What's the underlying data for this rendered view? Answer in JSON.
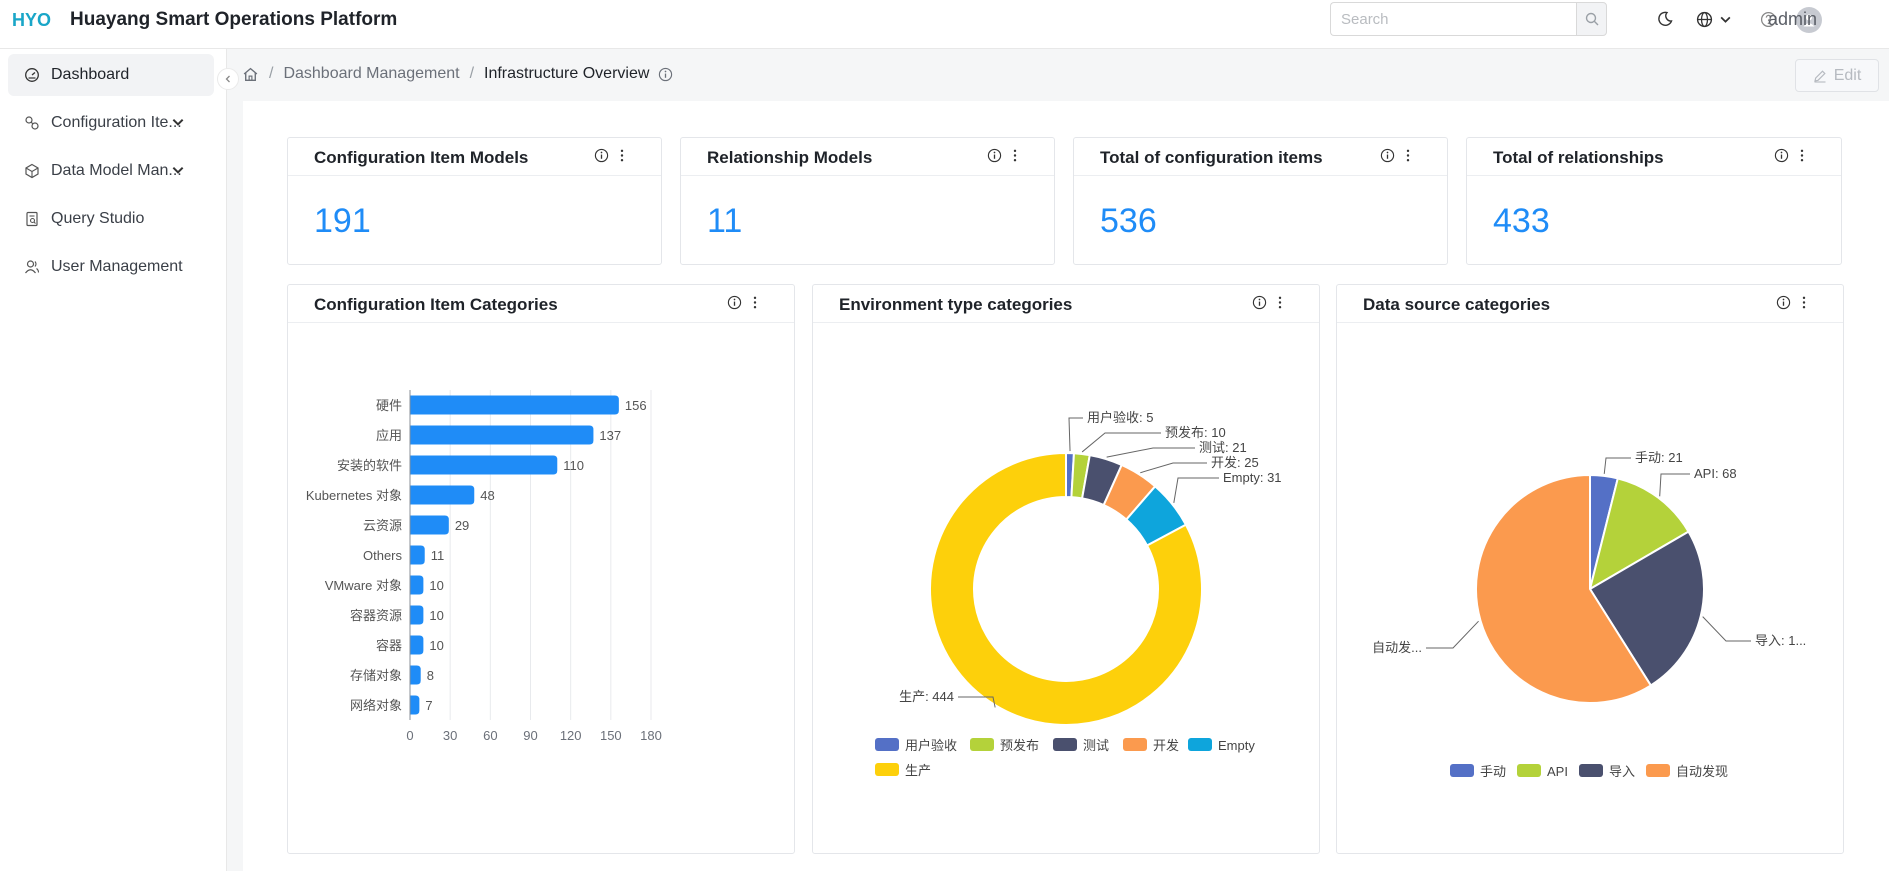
{
  "header": {
    "logo_text": "HYO",
    "app_title": "Huayang Smart Operations Platform",
    "search_placeholder": "Search",
    "user_name": "admin"
  },
  "sidebar": {
    "items": [
      {
        "label": "Dashboard",
        "icon": "dashboard-icon",
        "active": true
      },
      {
        "label": "Configuration Ite...",
        "icon": "configuration-icon"
      },
      {
        "label": "Data Model Man...",
        "icon": "data-model-icon"
      },
      {
        "label": "Query Studio",
        "icon": "query-icon"
      },
      {
        "label": "User Management",
        "icon": "user-icon"
      }
    ]
  },
  "breadcrumb": {
    "items": [
      "Dashboard Management",
      "Infrastructure Overview"
    ]
  },
  "toolbar": {
    "edit_label": "Edit"
  },
  "kpis": [
    {
      "title": "Configuration Item Models",
      "value": "191"
    },
    {
      "title": "Relationship Models",
      "value": "11"
    },
    {
      "title": "Total of configuration items",
      "value": "536"
    },
    {
      "title": "Total of relationships",
      "value": "433"
    }
  ],
  "chart_titles": [
    "Configuration Item Categories",
    "Environment type categories",
    "Data source categories"
  ],
  "chart_data": [
    {
      "type": "bar",
      "orientation": "horizontal",
      "title": "Configuration Item Categories",
      "categories": [
        "硬件",
        "应用",
        "安装的软件",
        "Kubernetes 对象",
        "云资源",
        "Others",
        "VMware 对象",
        "容器资源",
        "容器",
        "存储对象",
        "网络对象"
      ],
      "values": [
        156,
        137,
        110,
        48,
        29,
        11,
        10,
        10,
        10,
        8,
        7
      ],
      "xlim": [
        0,
        180
      ],
      "xticks": [
        "0",
        "30",
        "60",
        "90",
        "120",
        "150",
        "180"
      ],
      "color": "#1f8cf7",
      "grid": "vertical"
    },
    {
      "type": "pie",
      "donut": true,
      "title": "Environment type categories",
      "slices": [
        {
          "name": "用户验收",
          "value": 5,
          "label": "用户验收: 5",
          "color": "#5470c6"
        },
        {
          "name": "预发布",
          "value": 10,
          "label": "预发布: 10",
          "color": "#b4d23a"
        },
        {
          "name": "测试",
          "value": 21,
          "label": "测试: 21",
          "color": "#4a506e"
        },
        {
          "name": "开发",
          "value": 25,
          "label": "开发: 25",
          "color": "#fb9a4e"
        },
        {
          "name": "Empty",
          "value": 31,
          "label": "Empty: 31",
          "color": "#0ea5dc"
        },
        {
          "name": "生产",
          "value": 444,
          "label": "生产: 444",
          "color": "#fdd00b"
        }
      ],
      "legend": "bottom"
    },
    {
      "type": "pie",
      "donut": false,
      "title": "Data source categories",
      "slices": [
        {
          "name": "手动",
          "value": 21,
          "label": "手动: 21",
          "color": "#5470c6"
        },
        {
          "name": "API",
          "value": 68,
          "label": "API: 68",
          "color": "#b4d23a"
        },
        {
          "name": "导入",
          "value": 131,
          "label": "导入: 1...",
          "color": "#4a506e"
        },
        {
          "name": "自动发现",
          "value": 316,
          "label": "自动发...",
          "color": "#fb9a4e"
        }
      ],
      "legend": "bottom"
    }
  ]
}
